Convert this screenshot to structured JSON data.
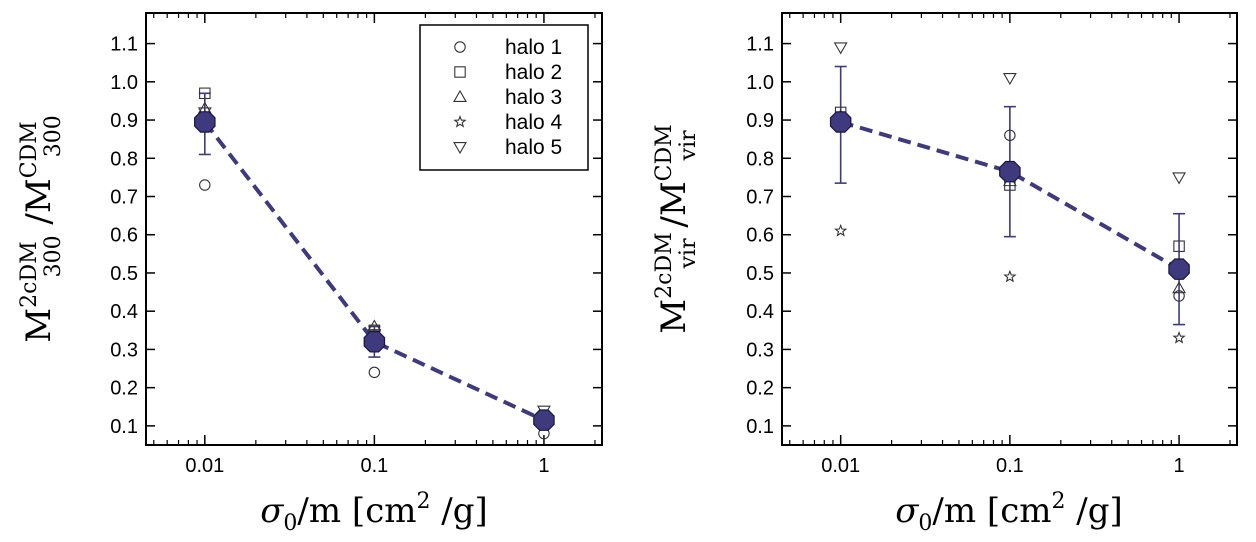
{
  "chart_data": [
    {
      "type": "scatter",
      "panel": "left",
      "xscale": "log",
      "xlim": [
        0.0045,
        2.2
      ],
      "ylim": [
        0.05,
        1.18
      ],
      "x_ticks": [
        0.01,
        0.1,
        1
      ],
      "x_tick_labels": [
        "0.01",
        "0.1",
        "1"
      ],
      "y_ticks": [
        0.1,
        0.2,
        0.3,
        0.4,
        0.5,
        0.6,
        0.7,
        0.8,
        0.9,
        1.0,
        1.1
      ],
      "y_tick_labels": [
        "0.1",
        "0.2",
        "0.3",
        "0.4",
        "0.5",
        "0.6",
        "0.7",
        "0.8",
        "0.9",
        "1.0",
        "1.1"
      ],
      "xlabel": {
        "main": "σ",
        "sub": "0",
        "rest": "/m [cm",
        "sup": "2",
        "end": " /g]"
      },
      "ylabel": {
        "t1": "M",
        "t1_sup": "2cDM",
        "t1_sub": "300",
        "sep": " /",
        "t2": "M",
        "t2_sup": "CDM",
        "t2_sub": "300"
      },
      "x": [
        0.01,
        0.1,
        1
      ],
      "series": [
        {
          "name": "halo 1",
          "marker": "circle",
          "values": [
            0.73,
            0.24,
            0.08
          ]
        },
        {
          "name": "halo 2",
          "marker": "square",
          "values": [
            0.97,
            0.35,
            0.11
          ]
        },
        {
          "name": "halo 3",
          "marker": "triangle-up",
          "values": [
            0.93,
            0.36,
            0.12
          ]
        },
        {
          "name": "halo 4",
          "marker": "star",
          "values": [
            0.91,
            0.33,
            0.11
          ]
        },
        {
          "name": "halo 5",
          "marker": "triangle-down",
          "values": [
            0.92,
            0.34,
            0.14
          ]
        }
      ],
      "mean": {
        "values": [
          0.895,
          0.32,
          0.115
        ],
        "err_low": [
          0.81,
          0.28,
          0.1
        ],
        "err_high": [
          0.97,
          0.36,
          0.13
        ],
        "color": "#3f3a7e"
      },
      "legend": {
        "position": "top-right",
        "entries": [
          "halo 1",
          "halo 2",
          "halo 3",
          "halo 4",
          "halo 5"
        ]
      }
    },
    {
      "type": "scatter",
      "panel": "right",
      "xscale": "log",
      "xlim": [
        0.0045,
        2.2
      ],
      "ylim": [
        0.05,
        1.18
      ],
      "x_ticks": [
        0.01,
        0.1,
        1
      ],
      "x_tick_labels": [
        "0.01",
        "0.1",
        "1"
      ],
      "y_ticks": [
        0.1,
        0.2,
        0.3,
        0.4,
        0.5,
        0.6,
        0.7,
        0.8,
        0.9,
        1.0,
        1.1
      ],
      "y_tick_labels": [
        "0.1",
        "0.2",
        "0.3",
        "0.4",
        "0.5",
        "0.6",
        "0.7",
        "0.8",
        "0.9",
        "1.0",
        "1.1"
      ],
      "xlabel": {
        "main": "σ",
        "sub": "0",
        "rest": "/m [cm",
        "sup": "2",
        "end": " /g]"
      },
      "ylabel": {
        "t1": "M",
        "t1_sup": "2cDM",
        "t1_sub": "vir",
        "sep": " /",
        "t2": "M",
        "t2_sup": "CDM",
        "t2_sub": "vir"
      },
      "x": [
        0.01,
        0.1,
        1
      ],
      "series": [
        {
          "name": "halo 1",
          "marker": "circle",
          "values": [
            0.9,
            0.86,
            0.44
          ]
        },
        {
          "name": "halo 2",
          "marker": "square",
          "values": [
            0.92,
            0.73,
            0.57
          ]
        },
        {
          "name": "halo 3",
          "marker": "triangle-up",
          "values": [
            0.91,
            0.74,
            0.46
          ]
        },
        {
          "name": "halo 4",
          "marker": "star",
          "values": [
            0.61,
            0.49,
            0.33
          ]
        },
        {
          "name": "halo 5",
          "marker": "triangle-down",
          "values": [
            1.09,
            1.01,
            0.75
          ]
        }
      ],
      "mean": {
        "values": [
          0.895,
          0.765,
          0.51
        ],
        "err_low": [
          0.735,
          0.595,
          0.365
        ],
        "err_high": [
          1.04,
          0.935,
          0.655
        ],
        "color": "#3f3a7e"
      }
    }
  ]
}
